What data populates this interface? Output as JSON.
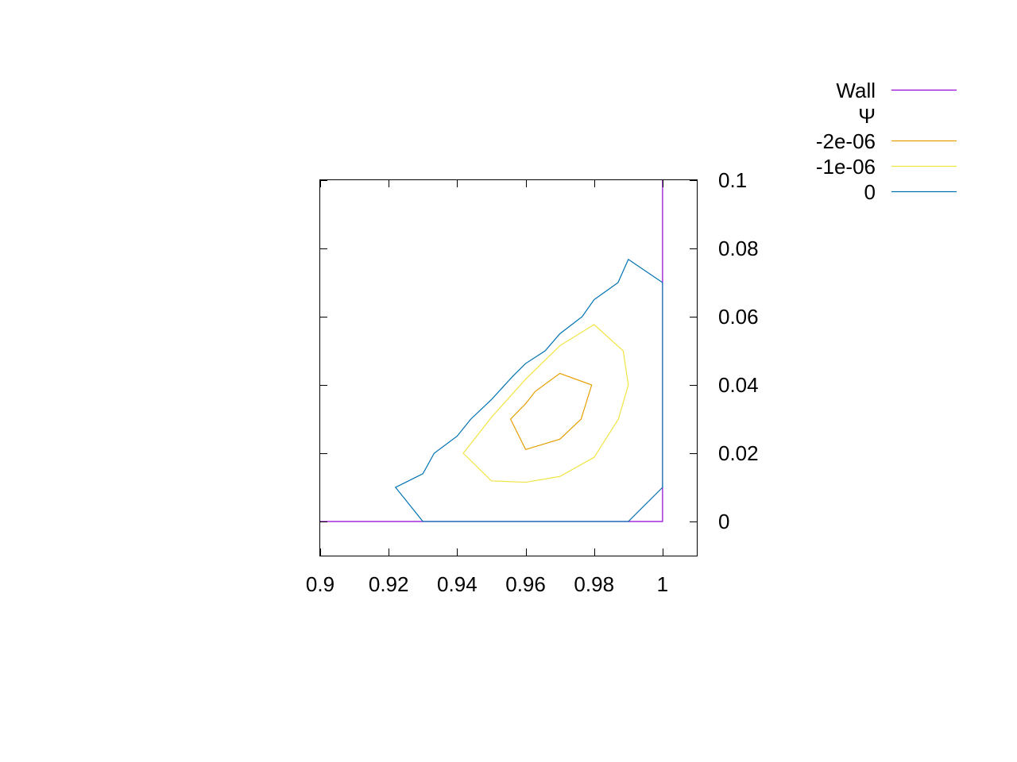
{
  "chart_data": {
    "type": "line",
    "title": "",
    "xlabel": "",
    "ylabel": "",
    "xlim": [
      0.9,
      1.01
    ],
    "ylim": [
      -0.01,
      0.1
    ],
    "x_ticks": [
      0.9,
      0.92,
      0.94,
      0.96,
      0.98,
      1
    ],
    "x_tick_labels": [
      "0.9",
      "0.92",
      "0.94",
      "0.96",
      "0.98",
      "1"
    ],
    "y_ticks": [
      0,
      0.02,
      0.04,
      0.06,
      0.08,
      0.1
    ],
    "y_tick_labels": [
      "0",
      "0.02",
      "0.04",
      "0.06",
      "0.08",
      "0.1"
    ],
    "y_axis_side": "right",
    "grid": false,
    "legend_position": "top-right, outside plot",
    "legend_heading": "Ψ",
    "series": [
      {
        "name": "Wall",
        "color": "#9400d3",
        "x": [
          0.9,
          1.0,
          1.0
        ],
        "y": [
          0.0,
          0.0,
          0.1
        ]
      },
      {
        "name": "-2e-06",
        "color": "#e69f00",
        "closed": true,
        "x": [
          0.9556,
          0.96,
          0.97,
          0.9762,
          0.9793,
          0.97,
          0.9628,
          0.96
        ],
        "y": [
          0.03,
          0.0211,
          0.0241,
          0.03,
          0.04,
          0.0434,
          0.0381,
          0.0345
        ]
      },
      {
        "name": "-1e-06",
        "color": "#f0e442",
        "closed": true,
        "x": [
          0.9418,
          0.95,
          0.96,
          0.97,
          0.98,
          0.9871,
          0.99,
          0.9885,
          0.98,
          0.97,
          0.96,
          0.95
        ],
        "y": [
          0.02,
          0.0119,
          0.0115,
          0.0132,
          0.0188,
          0.03,
          0.04,
          0.05,
          0.0577,
          0.0515,
          0.0417,
          0.0305
        ]
      },
      {
        "name": "0",
        "color": "#0072b2",
        "x": [
          0.93,
          0.922,
          0.93,
          0.9333,
          0.94,
          0.944,
          0.95,
          0.9563,
          0.96,
          0.9657,
          0.97,
          0.9765,
          0.98,
          0.987,
          0.99,
          1.0
        ],
        "y": [
          0.0,
          0.01,
          0.014,
          0.02,
          0.025,
          0.03,
          0.0357,
          0.0426,
          0.0463,
          0.05,
          0.055,
          0.06,
          0.065,
          0.07,
          0.0768,
          0.07
        ]
      },
      {
        "name": "0",
        "color": "#0072b2",
        "x": [
          0.93,
          0.99,
          1.0,
          1.0
        ],
        "y": [
          0.0,
          0.0,
          0.01,
          0.07
        ]
      }
    ]
  }
}
